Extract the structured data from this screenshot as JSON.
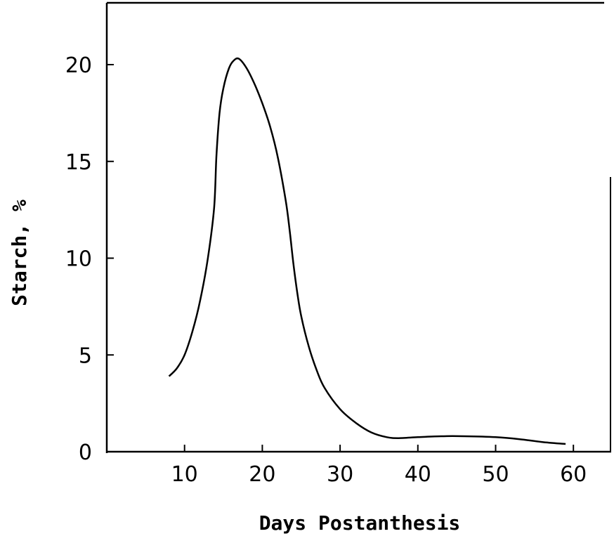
{
  "chart_data": {
    "type": "line",
    "title": "",
    "xlabel": "Days Postanthesis",
    "ylabel": "Starch, %",
    "xlim": [
      0,
      64
    ],
    "ylim": [
      0,
      23
    ],
    "x_ticks": [
      10,
      20,
      30,
      40,
      50,
      60
    ],
    "x_tick_labels": [
      "10",
      "20",
      "30",
      "40",
      "50",
      "60"
    ],
    "y_ticks": [
      0,
      5,
      10,
      15,
      20
    ],
    "y_tick_labels": [
      "0",
      "5",
      "10",
      "15",
      "20"
    ],
    "grid": false,
    "series": [
      {
        "color": "#000000",
        "points": [
          [
            8,
            3.9
          ],
          [
            9,
            4.3
          ],
          [
            10,
            5.0
          ],
          [
            11,
            6.2
          ],
          [
            12,
            7.8
          ],
          [
            13,
            10.0
          ],
          [
            13.8,
            12.6
          ],
          [
            14.1,
            15.3
          ],
          [
            14.5,
            17.5
          ],
          [
            15,
            18.8
          ],
          [
            15.7,
            19.8
          ],
          [
            16.3,
            20.2
          ],
          [
            17,
            20.3
          ],
          [
            18,
            19.8
          ],
          [
            19,
            19.0
          ],
          [
            20,
            18.0
          ],
          [
            21,
            16.8
          ],
          [
            22,
            15.2
          ],
          [
            23,
            13.0
          ],
          [
            23.5,
            11.5
          ],
          [
            24,
            9.7
          ],
          [
            24.5,
            8.2
          ],
          [
            25,
            7.0
          ],
          [
            26,
            5.4
          ],
          [
            27,
            4.2
          ],
          [
            28,
            3.3
          ],
          [
            30,
            2.2
          ],
          [
            32,
            1.5
          ],
          [
            34,
            1.0
          ],
          [
            36,
            0.75
          ],
          [
            37.5,
            0.7
          ],
          [
            40,
            0.75
          ],
          [
            43,
            0.8
          ],
          [
            46,
            0.8
          ],
          [
            50,
            0.75
          ],
          [
            53,
            0.65
          ],
          [
            56,
            0.5
          ],
          [
            59,
            0.4
          ]
        ]
      }
    ]
  }
}
